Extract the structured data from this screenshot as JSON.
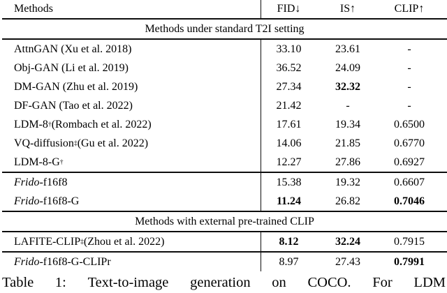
{
  "header": {
    "methods": "Methods",
    "fid": "FID↓",
    "is": "IS↑",
    "clip": "CLIP↑"
  },
  "sections": [
    {
      "title": "Methods under standard T2I setting",
      "groups": [
        {
          "rows": [
            {
              "method": [
                [
                  "AttnGAN (Xu et al. 2018)",
                  "n"
                ]
              ],
              "fid": {
                "text": "33.10",
                "bold": false
              },
              "is": {
                "text": "23.61",
                "bold": false
              },
              "clip": {
                "text": "-",
                "bold": false
              }
            },
            {
              "method": [
                [
                  "Obj-GAN (Li et al. 2019)",
                  "n"
                ]
              ],
              "fid": {
                "text": "36.52",
                "bold": false
              },
              "is": {
                "text": "24.09",
                "bold": false
              },
              "clip": {
                "text": "-",
                "bold": false
              }
            },
            {
              "method": [
                [
                  "DM-GAN (Zhu et al. 2019)",
                  "n"
                ]
              ],
              "fid": {
                "text": "27.34",
                "bold": false
              },
              "is": {
                "text": "32.32",
                "bold": true
              },
              "clip": {
                "text": "-",
                "bold": false
              }
            },
            {
              "method": [
                [
                  "DF-GAN (Tao et al. 2022)",
                  "n"
                ]
              ],
              "fid": {
                "text": "21.42",
                "bold": false
              },
              "is": {
                "text": "-",
                "bold": false
              },
              "clip": {
                "text": "-",
                "bold": false
              }
            },
            {
              "method": [
                [
                  "LDM-8",
                  "n"
                ],
                [
                  "†",
                  "sup"
                ],
                [
                  " (Rombach et al. 2022)",
                  "n"
                ]
              ],
              "fid": {
                "text": "17.61",
                "bold": false
              },
              "is": {
                "text": "19.34",
                "bold": false
              },
              "clip": {
                "text": "0.6500",
                "bold": false
              }
            },
            {
              "method": [
                [
                  "VQ-diffusion",
                  "n"
                ],
                [
                  "‡",
                  "sup"
                ],
                [
                  " (Gu et al. 2022)",
                  "n"
                ]
              ],
              "fid": {
                "text": "14.06",
                "bold": false
              },
              "is": {
                "text": "21.85",
                "bold": false
              },
              "clip": {
                "text": "0.6770",
                "bold": false
              }
            },
            {
              "method": [
                [
                  "LDM-8-G",
                  "n"
                ],
                [
                  "†",
                  "sup"
                ]
              ],
              "fid": {
                "text": "12.27",
                "bold": false
              },
              "is": {
                "text": "27.86",
                "bold": false
              },
              "clip": {
                "text": "0.6927",
                "bold": false
              }
            }
          ]
        },
        {
          "rows": [
            {
              "method": [
                [
                  "Frido",
                  "i"
                ],
                [
                  "-f16f8",
                  "n"
                ]
              ],
              "fid": {
                "text": "15.38",
                "bold": false
              },
              "is": {
                "text": "19.32",
                "bold": false
              },
              "clip": {
                "text": "0.6607",
                "bold": false
              }
            },
            {
              "method": [
                [
                  "Frido",
                  "i"
                ],
                [
                  "-f16f8-G",
                  "n"
                ]
              ],
              "fid": {
                "text": "11.24",
                "bold": true
              },
              "is": {
                "text": "26.82",
                "bold": false
              },
              "clip": {
                "text": "0.7046",
                "bold": true
              }
            }
          ]
        }
      ]
    },
    {
      "title": "Methods with external pre-trained CLIP",
      "groups": [
        {
          "rows": [
            {
              "method": [
                [
                  "LAFITE-CLIP",
                  "n"
                ],
                [
                  "‡",
                  "sup"
                ],
                [
                  " (Zhou et al. 2022)",
                  "n"
                ]
              ],
              "fid": {
                "text": "8.12",
                "bold": true
              },
              "is": {
                "text": "32.24",
                "bold": true
              },
              "clip": {
                "text": "0.7915",
                "bold": false
              }
            }
          ]
        },
        {
          "rows": [
            {
              "method": [
                [
                  "Frido",
                  "i"
                ],
                [
                  "-f16f8-G-CLIPr",
                  "n"
                ]
              ],
              "fid": {
                "text": "8.97",
                "bold": false
              },
              "is": {
                "text": "27.43",
                "bold": false
              },
              "clip": {
                "text": "0.7991",
                "bold": true
              }
            }
          ]
        }
      ]
    }
  ],
  "caption_words": [
    "Table",
    "1:",
    "Text-to-image",
    "generation",
    "on",
    "COCO.",
    "For",
    "LDM"
  ],
  "colors": {
    "text": "#000000",
    "rule": "#0d0d0d",
    "background": "#ffffff"
  }
}
